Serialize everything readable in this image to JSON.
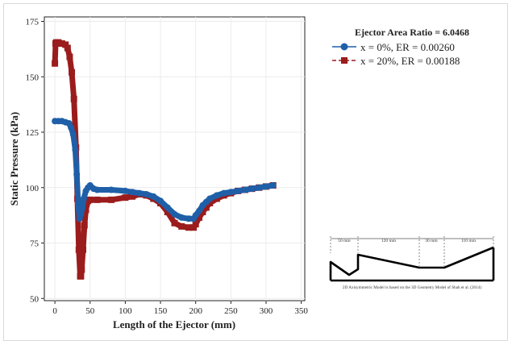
{
  "chart_data": {
    "type": "line",
    "title": "",
    "xlabel": "Length of the Ejector (mm)",
    "ylabel": "Static Pressure (kPa)",
    "xlim": [
      -15,
      355
    ],
    "ylim": [
      49,
      177
    ],
    "xticks": [
      0,
      50,
      100,
      150,
      200,
      250,
      300,
      350
    ],
    "yticks": [
      50,
      75,
      100,
      125,
      150,
      175
    ],
    "grid": true,
    "legend_position": "right",
    "legend_title": "Ejector Area Ratio = 6.0468",
    "series": [
      {
        "name": "x = 0%, ER = 0.00260",
        "color": "#1f5fa8",
        "style": "solid",
        "marker": "circle",
        "x": [
          0,
          5,
          10,
          15,
          20,
          23,
          26,
          29,
          31,
          33,
          35,
          37,
          39,
          41,
          44,
          47,
          50,
          55,
          60,
          80,
          100,
          110,
          120,
          130,
          140,
          150,
          160,
          170,
          180,
          190,
          197,
          200,
          205,
          210,
          215,
          220,
          230,
          240,
          250,
          260,
          270,
          280,
          290,
          300,
          310
        ],
        "y": [
          130,
          130,
          130,
          129.5,
          129,
          127,
          124,
          117,
          106,
          93,
          86,
          88,
          91,
          95,
          98.5,
          100,
          101,
          99.5,
          99,
          99,
          98.5,
          98,
          97.5,
          97,
          96,
          94,
          91,
          88,
          86.5,
          86,
          86,
          87.5,
          89.5,
          92,
          93.5,
          95,
          96.5,
          97.5,
          98,
          98.5,
          99,
          99.5,
          100,
          100.5,
          101
        ]
      },
      {
        "name": "x = 20%, ER = 0.00188",
        "color": "#9b1c1c",
        "style": "dashed",
        "marker": "square",
        "x": [
          0,
          1,
          2,
          5,
          10,
          15,
          18,
          21,
          24,
          27,
          30,
          32,
          34,
          36,
          37,
          38,
          40,
          42,
          44,
          47,
          50,
          60,
          80,
          100,
          110,
          120,
          130,
          140,
          150,
          160,
          170,
          180,
          190,
          197,
          200,
          205,
          210,
          215,
          220,
          230,
          240,
          250,
          260,
          270,
          280,
          290,
          300,
          310
        ],
        "y": [
          156,
          165,
          165.5,
          165.5,
          165,
          164.5,
          163,
          159,
          152,
          140,
          118,
          95,
          72,
          60,
          60,
          63,
          72,
          83,
          90,
          94,
          94.5,
          94.5,
          94.5,
          95.5,
          96,
          97,
          96.5,
          95,
          93,
          89,
          84,
          82.5,
          82,
          82,
          83.5,
          86.5,
          89,
          91,
          93,
          95,
          96.5,
          97.5,
          98.5,
          99,
          99.5,
          100,
          100.5,
          101
        ]
      }
    ]
  },
  "inset": {
    "segment_labels": [
      "50 mm",
      "120 mm",
      "30 mm",
      "110 mm"
    ],
    "caption": "2D Axisymmetric Model is based on the 3D Geometry Model of Shah et al. (2014)"
  }
}
